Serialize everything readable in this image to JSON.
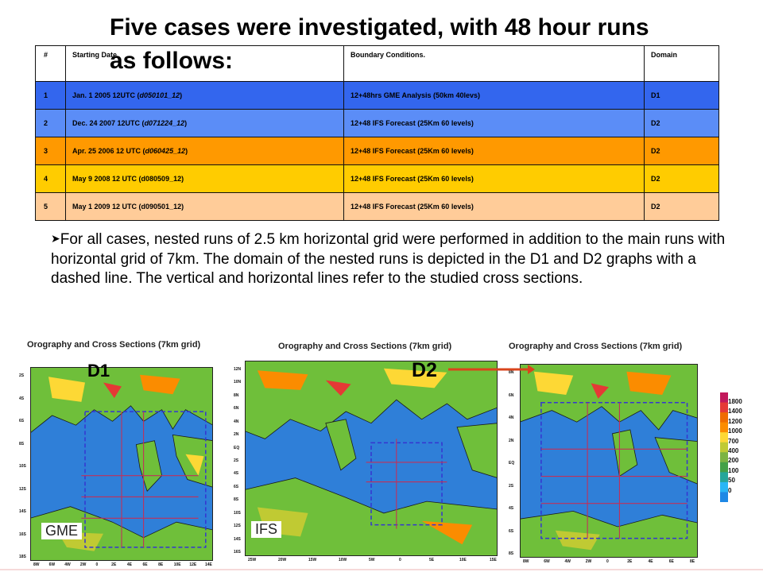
{
  "title": "Five cases were investigated, with 48 hour runs as follows:",
  "table": {
    "headers": [
      "#",
      "Starting Date",
      "Boundary Conditions.",
      "Domain"
    ],
    "rows": [
      {
        "num": "1",
        "date": "Jan. 1 2005 12UTC (",
        "code": "d050101_12",
        "date_end": ")",
        "bc": "12+48hrs GME Analysis (50km 40levs)",
        "domain": "D1",
        "color": "#3366ee"
      },
      {
        "num": "2",
        "date": "Dec. 24 2007 12UTC (",
        "code": "d071224_12",
        "date_end": ")",
        "bc": "12+48 IFS Forecast (25Km 60 levels)",
        "domain": "D2",
        "color": "#5b8df7"
      },
      {
        "num": "3",
        "date": "Apr. 25 2006 12 UTC (",
        "code": "d060425_12",
        "date_end": ")",
        "bc": "12+48 IFS Forecast (25Km 60 levels)",
        "domain": "D2",
        "color": "#ff9900"
      },
      {
        "num": "4",
        "date": "May 9 2008  12 UTC (d080509_12)",
        "code": "",
        "date_end": "",
        "bc": "12+48 IFS Forecast (25Km 60 levels)",
        "domain": "D2",
        "color": "#ffcc00"
      },
      {
        "num": "5",
        "date": "May 1 2009  12 UTC (d090501_12)",
        "code": "",
        "date_end": "",
        "bc": "12+48 IFS Forecast (25Km 60 levels)",
        "domain": "D2",
        "color": "#ffcc99"
      }
    ]
  },
  "body_text": "For all cases, nested runs of 2.5 km horizontal grid were performed in addition to the main runs with horizontal grid of 7km. The domain of the nested runs is depicted in the D1 and D2 graphs with a dashed line. The vertical and horizontal lines refer to the studied cross sections.",
  "maps": {
    "header": "Orography and Cross Sections (7km grid)",
    "d1_label": "D1",
    "d2_label": "D2",
    "gme_label": "GME",
    "ifs_label": "IFS",
    "d1_lat_ticks": [
      "2S",
      "4S",
      "6S",
      "8S",
      "10S",
      "12S",
      "14S",
      "16S",
      "18S"
    ],
    "d1_lon_ticks": [
      "8W",
      "6W",
      "4W",
      "2W",
      "0",
      "2E",
      "4E",
      "6E",
      "8E",
      "10E",
      "12E",
      "14E"
    ],
    "ifs_lat_ticks": [
      "12N",
      "10N",
      "8N",
      "6N",
      "4N",
      "2N",
      "EQ",
      "2S",
      "4S",
      "6S",
      "8S",
      "10S",
      "12S",
      "14S",
      "16S"
    ],
    "ifs_lon_ticks": [
      "25W",
      "20W",
      "15W",
      "10W",
      "5W",
      "0",
      "5E",
      "10E",
      "15E"
    ],
    "d2_lat_ticks": [
      "8N",
      "6N",
      "4N",
      "2N",
      "EQ",
      "2S",
      "4S",
      "6S",
      "8S"
    ],
    "d2_lon_ticks": [
      "8W",
      "6W",
      "4W",
      "2W",
      "0",
      "2E",
      "4E",
      "6E",
      "8E"
    ]
  },
  "colorbar": {
    "levels": [
      "1800",
      "1400",
      "1200",
      "1000",
      "700",
      "400",
      "200",
      "100",
      "50",
      "0"
    ],
    "colors": [
      "#c2185b",
      "#e53935",
      "#ef6c00",
      "#fb8c00",
      "#fdd835",
      "#c0ca33",
      "#7cb342",
      "#43a047",
      "#26a69a",
      "#29b6f6",
      "#1e88e5"
    ]
  }
}
